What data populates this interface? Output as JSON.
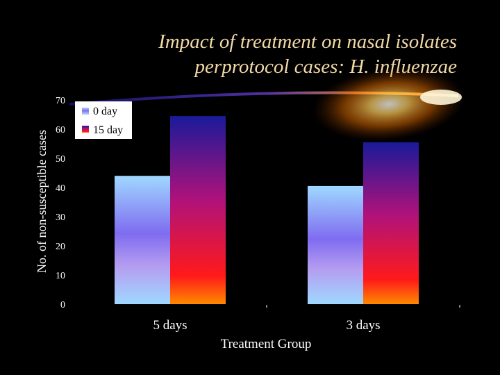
{
  "title": {
    "line1": "Impact of treatment on nasal isolates",
    "line2": "perprotocol cases: H. influenzae"
  },
  "colors": {
    "background": "#000000",
    "title_text": "#f3d9a6",
    "axis_text": "#ffffff",
    "series_0day": [
      "#9fd8ff",
      "#7f6cf0",
      "#b59cf0",
      "#9fd8ff"
    ],
    "series_15day": [
      "#1a1a9a",
      "#b0127a",
      "#ff1a1a",
      "#ff8a00"
    ]
  },
  "chart_data": {
    "type": "bar",
    "xlabel": "Treatment Group",
    "ylabel": "No. of non-susceptible cases",
    "ylim": [
      0,
      70
    ],
    "yticks": [
      0,
      10,
      20,
      30,
      40,
      50,
      60,
      70
    ],
    "categories": [
      "5 days",
      "3 days"
    ],
    "series": [
      {
        "name": "0 day",
        "values": [
          44,
          40.5
        ]
      },
      {
        "name": "15 day",
        "values": [
          64.5,
          55.5
        ]
      }
    ],
    "legend": "top-left",
    "grid": false
  }
}
